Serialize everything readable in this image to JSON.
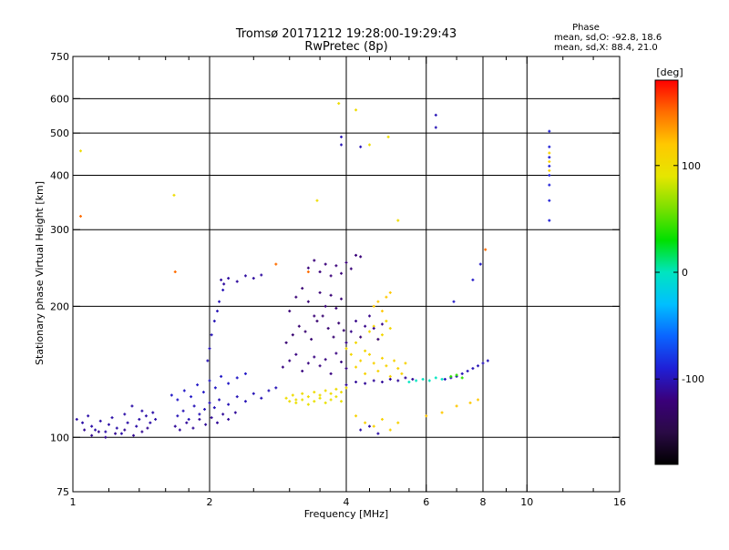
{
  "chart_data": {
    "type": "scatter",
    "title": "Tromsø 20171212 19:28:00-19:29:43",
    "subtitle": "RwPretec (8p)",
    "xlabel": "Frequency [MHz]",
    "ylabel": "Stationary phase Virtual Height [km]",
    "x_scale": "log",
    "y_scale": "log",
    "xlim": [
      1,
      16
    ],
    "ylim": [
      75,
      750
    ],
    "x_ticks": [
      1,
      2,
      4,
      6,
      8,
      10,
      16
    ],
    "x_tick_labels": [
      "1",
      "2",
      "4",
      "6",
      "8",
      "10",
      "16"
    ],
    "x_minor_ticks": [
      1.2,
      1.4,
      1.6,
      1.8,
      2.5,
      3,
      3.5,
      4.5,
      5,
      5.5,
      7,
      9,
      12,
      14
    ],
    "y_ticks": [
      75,
      100,
      200,
      300,
      400,
      500,
      600,
      750
    ],
    "y_tick_labels": [
      "75",
      "100",
      "200",
      "300",
      "400",
      "500",
      "600",
      "750"
    ],
    "grid_x": [
      2,
      4,
      6,
      8,
      10
    ],
    "grid_y": [
      100,
      200,
      300,
      400,
      500,
      600
    ],
    "phase_stats": {
      "heading": "Phase",
      "line1": "mean, sd,O: -92.8, 18.6",
      "line2": "mean, sd,X:  88.4, 21.0"
    },
    "colorbar": {
      "label": "[deg]",
      "range": [
        -180,
        180
      ],
      "ticks": [
        100,
        0,
        -100
      ],
      "tick_labels": [
        "100",
        "0",
        "-100"
      ],
      "colors": [
        "#000000",
        "#2a0a45",
        "#3a007a",
        "#1f1fd6",
        "#0a64ff",
        "#00bfff",
        "#00e5c0",
        "#00e000",
        "#7be000",
        "#e6e600",
        "#ffc800",
        "#ff6e00",
        "#ff0000"
      ]
    },
    "series": [
      {
        "x": [
          1.02,
          1.05,
          1.08,
          1.1,
          1.12,
          1.15,
          1.18,
          1.2,
          1.22,
          1.25,
          1.28,
          1.3,
          1.32,
          1.35,
          1.38,
          1.4,
          1.42,
          1.45,
          1.48,
          1.5,
          1.52
        ],
        "y": [
          110,
          108,
          112,
          106,
          104,
          109,
          103,
          107,
          111,
          105,
          102,
          113,
          108,
          118,
          106,
          110,
          115,
          112,
          108,
          114,
          110
        ],
        "phase": -105
      },
      {
        "x": [
          1.06,
          1.1,
          1.14,
          1.18,
          1.24,
          1.3,
          1.36,
          1.42,
          1.46
        ],
        "y": [
          104,
          101,
          103,
          100,
          102,
          104,
          101,
          103,
          105
        ],
        "phase": -112
      },
      {
        "x": [
          1.7,
          1.75,
          1.8,
          1.85,
          1.9,
          1.95,
          2.0,
          2.05,
          2.1,
          2.2,
          2.3,
          2.4,
          2.5,
          2.6,
          2.7,
          2.8
        ],
        "y": [
          112,
          115,
          110,
          118,
          113,
          116,
          120,
          117,
          122,
          119,
          124,
          121,
          126,
          123,
          128,
          130
        ],
        "phase": -100
      },
      {
        "x": [
          1.68,
          1.72,
          1.78,
          1.84,
          1.9,
          1.96,
          2.02,
          2.08,
          2.14,
          2.2,
          2.28
        ],
        "y": [
          106,
          104,
          108,
          105,
          110,
          107,
          111,
          108,
          113,
          110,
          114
        ],
        "phase": -110
      },
      {
        "x": [
          1.65,
          1.7,
          1.76,
          1.82,
          1.88,
          1.94,
          2.0,
          2.06,
          2.12,
          2.2,
          2.3,
          2.4
        ],
        "y": [
          125,
          122,
          128,
          124,
          132,
          127,
          135,
          130,
          138,
          133,
          137,
          140
        ],
        "phase": -95
      },
      {
        "x": [
          1.98,
          2.0,
          2.02,
          2.05,
          2.08,
          2.1,
          2.14
        ],
        "y": [
          150,
          160,
          172,
          185,
          195,
          205,
          218
        ],
        "phase": -100
      },
      {
        "x": [
          2.12,
          2.15,
          2.2,
          2.3,
          2.4,
          2.5,
          2.6
        ],
        "y": [
          230,
          225,
          232,
          228,
          235,
          232,
          236
        ],
        "phase": -108
      },
      {
        "x": [
          2.9,
          3.0,
          3.1,
          3.2,
          3.3,
          3.4,
          3.5,
          3.6,
          3.7,
          3.8,
          3.9,
          4.0
        ],
        "y": [
          145,
          150,
          155,
          142,
          148,
          153,
          146,
          151,
          140,
          156,
          149,
          144
        ],
        "phase": -118
      },
      {
        "x": [
          2.95,
          3.05,
          3.15,
          3.25,
          3.35,
          3.45,
          3.55,
          3.65,
          3.75,
          3.85,
          3.95
        ],
        "y": [
          165,
          172,
          180,
          175,
          168,
          185,
          190,
          178,
          170,
          183,
          176
        ],
        "phase": -125
      },
      {
        "x": [
          3.0,
          3.1,
          3.2,
          3.3,
          3.4,
          3.5,
          3.6,
          3.7,
          3.8,
          3.9
        ],
        "y": [
          195,
          210,
          220,
          205,
          190,
          215,
          200,
          212,
          198,
          208
        ],
        "phase": -122
      },
      {
        "x": [
          3.3,
          3.4,
          3.5,
          3.6,
          3.7,
          3.8,
          3.9,
          4.0,
          4.1,
          4.2,
          4.3
        ],
        "y": [
          245,
          255,
          240,
          250,
          235,
          248,
          238,
          252,
          244,
          262,
          260
        ],
        "phase": -120
      },
      {
        "x": [
          2.95,
          3.0,
          3.05,
          3.1,
          3.2,
          3.3,
          3.4,
          3.5,
          3.6,
          3.7,
          3.8,
          3.9,
          4.0
        ],
        "y": [
          123,
          121,
          125,
          122,
          126,
          124,
          127,
          125,
          128,
          126,
          129,
          127,
          130
        ],
        "phase": 100
      },
      {
        "x": [
          3.1,
          3.2,
          3.3,
          3.4,
          3.5,
          3.6,
          3.7,
          3.8,
          3.9
        ],
        "y": [
          120,
          122,
          119,
          121,
          123,
          120,
          122,
          124,
          121
        ],
        "phase": 95
      },
      {
        "x": [
          4.0,
          4.1,
          4.2,
          4.3,
          4.4,
          4.5,
          4.6,
          4.7,
          4.8,
          4.9,
          5.0
        ],
        "y": [
          160,
          155,
          165,
          170,
          158,
          175,
          180,
          168,
          172,
          185,
          178
        ],
        "phase": 105
      },
      {
        "x": [
          4.2,
          4.3,
          4.4,
          4.5,
          4.6,
          4.7,
          4.8,
          4.9,
          5.0,
          5.1,
          5.2,
          5.3,
          5.4
        ],
        "y": [
          145,
          150,
          140,
          155,
          148,
          142,
          152,
          146,
          138,
          150,
          144,
          140,
          148
        ],
        "phase": 110
      },
      {
        "x": [
          4.0,
          4.1,
          4.2,
          4.3,
          4.4,
          4.5,
          4.6,
          4.7,
          4.8
        ],
        "y": [
          165,
          175,
          185,
          170,
          180,
          190,
          178,
          168,
          182
        ],
        "phase": -115
      },
      {
        "x": [
          4.6,
          4.7,
          4.8,
          4.9,
          5.0
        ],
        "y": [
          200,
          205,
          195,
          210,
          215
        ],
        "phase": 120
      },
      {
        "x": [
          4.0,
          4.2,
          4.4,
          4.6,
          4.8,
          5.0,
          5.2,
          5.4,
          5.6
        ],
        "y": [
          132,
          134,
          133,
          135,
          134,
          136,
          135,
          137,
          136
        ],
        "phase": -110
      },
      {
        "x": [
          5.5,
          5.7,
          5.9,
          6.1,
          6.3,
          6.5
        ],
        "y": [
          134,
          135,
          136,
          135,
          137,
          136
        ],
        "phase": 0
      },
      {
        "x": [
          6.6,
          6.8,
          7.0,
          7.2,
          7.4,
          7.6,
          7.8,
          8.0,
          8.2
        ],
        "y": [
          136,
          137,
          138,
          140,
          142,
          144,
          146,
          148,
          150
        ],
        "phase": -100
      },
      {
        "x": [
          6.8,
          7.0,
          7.2
        ],
        "y": [
          138,
          139,
          137
        ],
        "phase": 40
      },
      {
        "x": [
          6.0,
          6.5,
          7.0,
          7.5,
          7.8
        ],
        "y": [
          112,
          114,
          118,
          120,
          122
        ],
        "phase": 120
      },
      {
        "x": [
          4.2,
          4.4,
          4.6,
          4.8,
          5.0,
          5.2
        ],
        "y": [
          112,
          108,
          106,
          110,
          104,
          108
        ],
        "phase": 110
      },
      {
        "x": [
          4.3,
          4.5,
          4.7
        ],
        "y": [
          104,
          106,
          102
        ],
        "phase": -105
      },
      {
        "x": [
          11.2,
          11.2,
          11.2,
          11.2,
          11.2,
          11.2,
          11.2,
          11.2
        ],
        "y": [
          315,
          350,
          380,
          400,
          420,
          440,
          465,
          505
        ],
        "phase": -90
      },
      {
        "x": [
          11.2,
          11.2,
          11.2
        ],
        "y": [
          410,
          450,
          430
        ],
        "phase": 110
      },
      {
        "x": [
          1.04,
          1.67,
          3.45,
          3.85,
          4.2,
          4.5,
          4.95,
          5.2
        ],
        "y": [
          455,
          360,
          350,
          585,
          565,
          470,
          490,
          315
        ],
        "phase": 100
      },
      {
        "x": [
          3.9,
          3.9,
          6.3,
          6.3,
          4.3
        ],
        "y": [
          490,
          470,
          550,
          515,
          465
        ],
        "phase": -100
      },
      {
        "x": [
          7.9,
          7.6,
          6.9
        ],
        "y": [
          250,
          230,
          205
        ],
        "phase": -95
      },
      {
        "x": [
          1.04,
          1.68,
          2.8,
          3.3,
          8.1
        ],
        "y": [
          322,
          240,
          250,
          240,
          270
        ],
        "phase": 150
      }
    ]
  }
}
